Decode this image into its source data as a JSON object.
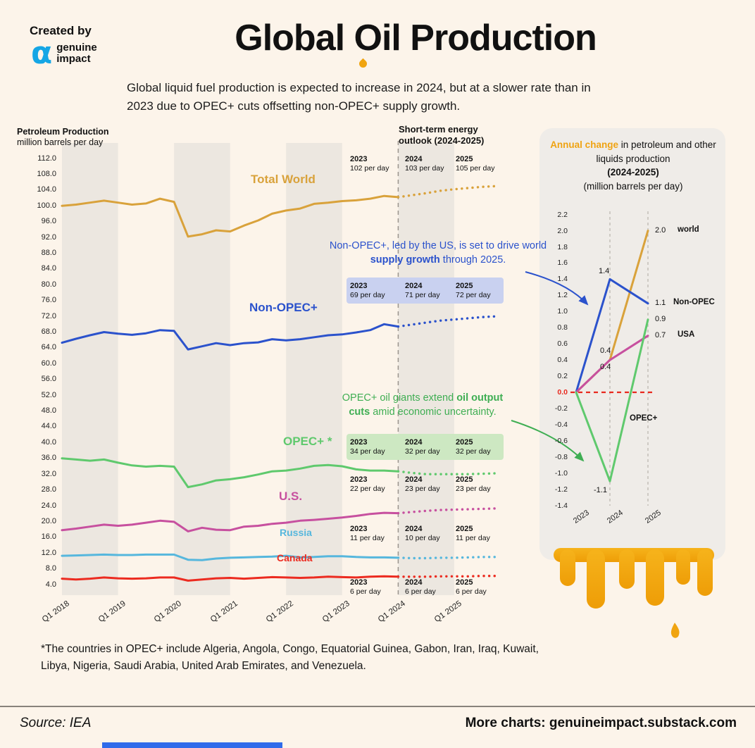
{
  "header": {
    "created_by": "Created by",
    "brand_line1": "genuine",
    "brand_line2": "impact",
    "title": {
      "part1": "Global ",
      "oil": "Oil",
      "part2": " Production"
    },
    "subtitle_line1": "Global liquid fuel production is expected to increase in 2024, but at a slower rate than in",
    "subtitle_line2": "2023 due to OPEC+ cuts offsetting non-OPEC+ supply growth."
  },
  "chart_data": [
    {
      "type": "line",
      "title": "Petroleum Production",
      "ylabel": "million barrels per day",
      "outlook_heading_line1": "Short-term energy",
      "outlook_heading_line2": "outlook (2024-2025)",
      "x_tick_labels": [
        "Q1 2018",
        "Q1 2019",
        "Q1 2020",
        "Q1 2021",
        "Q1 2022",
        "Q1 2023",
        "Q1 2024",
        "Q1 2025"
      ],
      "y_ticks": {
        "max": 112.0,
        "min": 4.0,
        "step": 4.0
      },
      "ylim": [
        2.0,
        114.0
      ],
      "forecast_from_index": 24,
      "series": [
        {
          "name": "Total World",
          "label": "Total World",
          "color": "#D9A23B",
          "values": [
            100.0,
            100.3,
            100.8,
            101.3,
            100.8,
            100.3,
            100.6,
            101.8,
            101.0,
            92.2,
            92.8,
            93.8,
            93.5,
            95.0,
            96.3,
            98.0,
            98.8,
            99.3,
            100.5,
            100.8,
            101.2,
            101.4,
            101.8,
            102.5,
            102.2,
            102.7,
            103.2,
            103.8,
            104.2,
            104.5,
            104.8,
            105.0
          ]
        },
        {
          "name": "Non-OPEC+",
          "label": "Non-OPEC+",
          "color": "#2B52CC",
          "values": [
            65.3,
            66.3,
            67.2,
            68.0,
            67.6,
            67.3,
            67.7,
            68.5,
            68.3,
            63.6,
            64.4,
            65.2,
            64.7,
            65.2,
            65.4,
            66.2,
            65.9,
            66.2,
            66.7,
            67.2,
            67.4,
            67.9,
            68.5,
            70.0,
            69.4,
            69.9,
            70.4,
            70.9,
            71.2,
            71.5,
            71.8,
            72.0
          ]
        },
        {
          "name": "OPEC+",
          "label": "OPEC+ *",
          "color": "#5FC96D",
          "values": [
            36.0,
            35.7,
            35.4,
            35.7,
            34.9,
            34.2,
            33.9,
            34.1,
            33.9,
            28.7,
            29.4,
            30.4,
            30.7,
            31.2,
            31.9,
            32.7,
            32.9,
            33.4,
            34.1,
            34.3,
            34.0,
            33.2,
            32.9,
            32.9,
            32.7,
            32.3,
            32.0,
            32.0,
            32.0,
            32.0,
            32.1,
            32.2
          ]
        },
        {
          "name": "U.S.",
          "label": "U.S.",
          "color": "#C7509F",
          "values": [
            17.8,
            18.2,
            18.7,
            19.2,
            18.9,
            19.2,
            19.7,
            20.2,
            19.9,
            17.5,
            18.4,
            17.9,
            17.8,
            18.7,
            18.9,
            19.4,
            19.7,
            20.2,
            20.4,
            20.7,
            21.0,
            21.4,
            21.9,
            22.2,
            22.1,
            22.4,
            22.7,
            22.9,
            23.0,
            23.1,
            23.2,
            23.3
          ]
        },
        {
          "name": "Russia",
          "label": "Russia",
          "color": "#56B7DD",
          "values": [
            11.3,
            11.4,
            11.5,
            11.6,
            11.5,
            11.5,
            11.6,
            11.6,
            11.6,
            10.3,
            10.2,
            10.6,
            10.8,
            10.9,
            11.0,
            11.1,
            11.3,
            10.9,
            11.0,
            11.2,
            11.2,
            11.0,
            10.9,
            10.9,
            10.8,
            10.7,
            10.7,
            10.8,
            10.8,
            10.9,
            11.0,
            11.0
          ]
        },
        {
          "name": "Canada",
          "label": "Canada",
          "color": "#EC2B20",
          "values": [
            5.5,
            5.3,
            5.5,
            5.8,
            5.6,
            5.5,
            5.6,
            5.8,
            5.8,
            5.0,
            5.3,
            5.6,
            5.7,
            5.5,
            5.7,
            5.9,
            5.8,
            5.7,
            5.8,
            6.0,
            5.9,
            5.8,
            6.0,
            6.1,
            6.0,
            6.0,
            6.0,
            6.1,
            6.1,
            6.1,
            6.2,
            6.2
          ]
        }
      ],
      "outlook_table": [
        {
          "series": "Total World",
          "highlight": null,
          "cells": [
            {
              "year": "2023",
              "value": "102 per day"
            },
            {
              "year": "2024",
              "value": "103 per day"
            },
            {
              "year": "2025",
              "value": "105 per day"
            }
          ]
        },
        {
          "series": "Non-OPEC+",
          "highlight": "#C9D1F0",
          "cells": [
            {
              "year": "2023",
              "value": "69 per day"
            },
            {
              "year": "2024",
              "value": "71 per day"
            },
            {
              "year": "2025",
              "value": "72 per day"
            }
          ]
        },
        {
          "series": "OPEC+",
          "highlight": "#CDE8C2",
          "cells": [
            {
              "year": "2023",
              "value": "34 per day"
            },
            {
              "year": "2024",
              "value": "32 per day"
            },
            {
              "year": "2025",
              "value": "32 per day"
            }
          ]
        },
        {
          "series": "U.S.",
          "highlight": null,
          "cells": [
            {
              "year": "2023",
              "value": "22 per day"
            },
            {
              "year": "2024",
              "value": "23 per day"
            },
            {
              "year": "2025",
              "value": "23 per day"
            }
          ]
        },
        {
          "series": "Russia",
          "highlight": null,
          "cells": [
            {
              "year": "2023",
              "value": "11 per day"
            },
            {
              "year": "2024",
              "value": "10 per day"
            },
            {
              "year": "2025",
              "value": "11 per day"
            }
          ]
        },
        {
          "series": "Canada",
          "highlight": null,
          "cells": [
            {
              "year": "2023",
              "value": "6 per day"
            },
            {
              "year": "2024",
              "value": "6 per day"
            },
            {
              "year": "2025",
              "value": "6 per day"
            }
          ]
        }
      ],
      "annotations": [
        {
          "id": "non-opec-callout",
          "color": "#2B52CC",
          "text_pre": "Non-OPEC+, led by the US, is set to drive world ",
          "text_bold": "supply growth",
          "text_post": " through 2025."
        },
        {
          "id": "opec-callout",
          "color": "#3FAE53",
          "text_pre": "OPEC+ oil giants extend ",
          "text_bold": "oil output cuts",
          "text_post": " amid economic uncertainty."
        }
      ]
    },
    {
      "type": "line",
      "title": {
        "highlight": "Annual change",
        "rest": " in petroleum and other liquids production",
        "bold_line": "(2024-2025)",
        "sub_line": "(million barrels per day)"
      },
      "categories": [
        "2023",
        "2024",
        "2025"
      ],
      "y_ticks": {
        "max": 2.2,
        "min": -1.4,
        "step": 0.2
      },
      "ylim": [
        -1.4,
        2.2
      ],
      "zero_line_color": "#E8281E",
      "series": [
        {
          "name": "world",
          "color": "#D9A23B",
          "values": [
            0.0,
            0.4,
            2.0
          ],
          "point_labels": {
            "2024": "0.4",
            "2025": "2.0"
          }
        },
        {
          "name": "Non-OPEC",
          "color": "#2B52CC",
          "values": [
            0.0,
            1.4,
            1.1
          ],
          "point_labels": {
            "2024": "1.4",
            "2025": "1.1"
          }
        },
        {
          "name": "USA",
          "color": "#C7509F",
          "values": [
            0.0,
            0.4,
            0.7
          ],
          "point_labels": {
            "2024": "0.4",
            "2025": "0.7"
          }
        },
        {
          "name": "OPEC+",
          "color": "#5FC96D",
          "values": [
            0.0,
            -1.1,
            0.9
          ],
          "point_labels": {
            "2024": "-1.1",
            "2025": "0.9"
          }
        }
      ]
    }
  ],
  "footnote_line1": "*The countries in OPEC+ include Algeria, Angola, Congo, Equatorial Guinea, Gabon, Iran, Iraq, Kuwait,",
  "footnote_line2": "Libya, Nigeria, Saudi Arabia, United Arab Emirates, and Venezuela.",
  "footer": {
    "source": "Source: IEA",
    "more_charts": "More charts: genuineimpact.substack.com"
  }
}
